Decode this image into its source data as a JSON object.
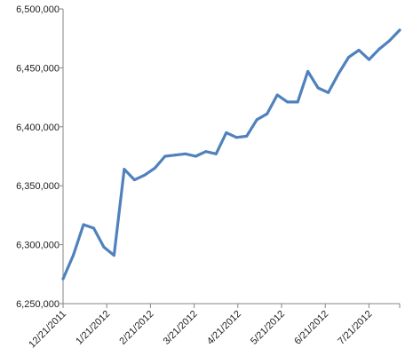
{
  "chart_data": {
    "type": "line",
    "title": "",
    "xlabel": "",
    "ylabel": "",
    "ylim": [
      6250000,
      6500000
    ],
    "yticks": [
      6250000,
      6300000,
      6350000,
      6400000,
      6450000,
      6500000
    ],
    "ytick_labels": [
      "6,250,000",
      "6,300,000",
      "6,350,000",
      "6,400,000",
      "6,450,000",
      "6,500,000"
    ],
    "xtick_labels": [
      "12/21/2011",
      "1/21/2012",
      "2/21/2012",
      "3/21/2012",
      "4/21/2012",
      "5/21/2012",
      "6/21/2012",
      "7/21/2012"
    ],
    "grid": false,
    "line_color": "#4F81BD",
    "series": [
      {
        "values": [
          6271000,
          6291000,
          6317000,
          6314000,
          6298000,
          6291000,
          6364000,
          6355000,
          6359000,
          6365000,
          6375000,
          6376000,
          6377000,
          6375000,
          6379000,
          6377000,
          6395000,
          6391000,
          6392000,
          6406000,
          6411000,
          6427000,
          6421000,
          6421000,
          6447000,
          6433000,
          6429000,
          6445000,
          6459000,
          6465000,
          6457000,
          6466000,
          6473000,
          6482000
        ]
      }
    ]
  }
}
